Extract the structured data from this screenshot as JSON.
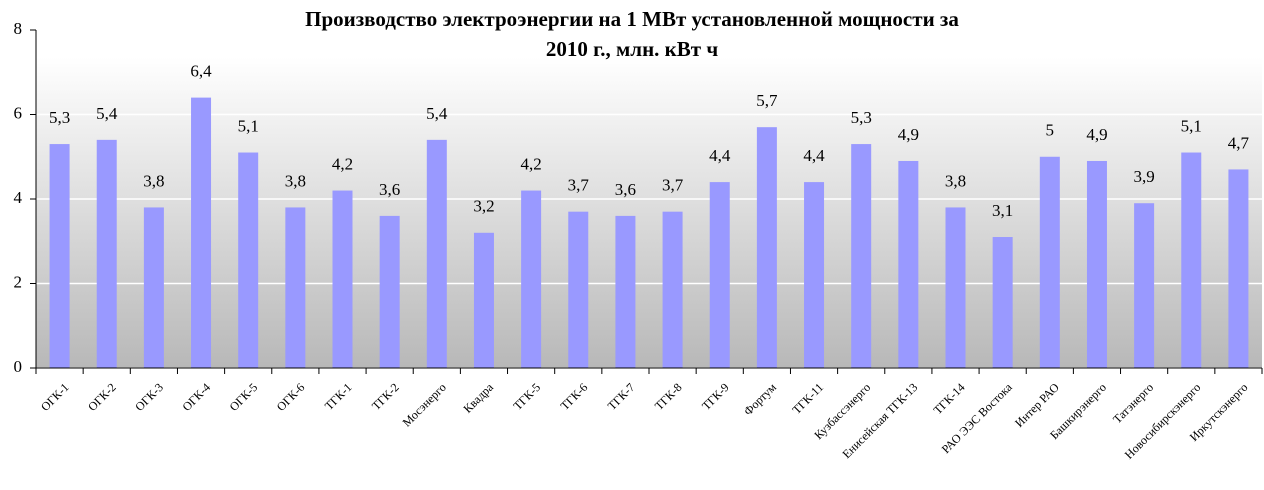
{
  "chart_data": {
    "type": "bar",
    "title": "Производство электроэнергии на 1 МВт установленной мощности за 2010 г., млн. кВт ч",
    "categories": [
      "ОГК-1",
      "ОГК-2",
      "ОГК-3",
      "ОГК-4",
      "ОГК-5",
      "ОГК-6",
      "ТГК-1",
      "ТГК-2",
      "Мосэнерго",
      "Квадра",
      "ТГК-5",
      "ТГК-6",
      "ТГК-7",
      "ТГК-8",
      "ТГК-9",
      "Фортум",
      "ТГК-11",
      "Кузбассэнерго",
      "Енисейская ТГК-13",
      "ТГК-14",
      "РАО ЭЭС Востока",
      "Интер РАО",
      "Башкирэнерго",
      "Татэнерго",
      "Новосибирскэнерго",
      "Иркутскэнерго"
    ],
    "values": [
      5.3,
      5.4,
      3.8,
      6.4,
      5.1,
      3.8,
      4.2,
      3.6,
      5.4,
      3.2,
      4.2,
      3.7,
      3.6,
      3.7,
      4.4,
      5.7,
      4.4,
      5.3,
      4.9,
      3.8,
      3.1,
      5,
      4.9,
      3.9,
      5.1,
      4.7
    ],
    "value_labels": [
      "5,3",
      "5,4",
      "3,8",
      "6,4",
      "5,1",
      "3,8",
      "4,2",
      "3,6",
      "5,4",
      "3,2",
      "4,2",
      "3,7",
      "3,6",
      "3,7",
      "4,4",
      "5,7",
      "4,4",
      "5,3",
      "4,9",
      "3,8",
      "3,1",
      "5",
      "4,9",
      "3,9",
      "5,1",
      "4,7"
    ],
    "color": "#9999ff",
    "ylim": [
      0,
      8
    ],
    "yticks": [
      0,
      2,
      4,
      6,
      8
    ],
    "grid": true
  }
}
